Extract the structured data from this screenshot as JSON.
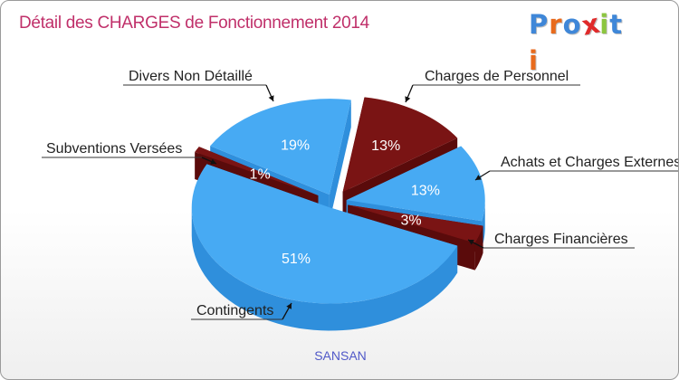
{
  "colors": {
    "title": "#c0306a",
    "subtitle": "#5058c8",
    "blue_top": "#47aaf3",
    "blue_side": "#2f8fdc",
    "red_top": "#7a1414",
    "red_side": "#5a0b0b",
    "logo_letters": [
      "#3b6fc4",
      "#e07a1f",
      "#3b6fc4",
      "#8bc53f",
      "#3b6fc4",
      "#e24a8b"
    ]
  },
  "logo": {
    "letters": [
      "P",
      "r",
      "o",
      "x",
      "i",
      "t",
      "i"
    ],
    "letter_colors": [
      "#3f87d8",
      "#e86a1c",
      "#3f87d8",
      "#e02a2a",
      "#8cc63f",
      "#3f87d8",
      "#e86a1c"
    ]
  },
  "chart_data": {
    "type": "pie",
    "title": "Détail des CHARGES de Fonctionnement 2014",
    "subtitle": "SANSAN",
    "slices": [
      {
        "name": "Charges de Personnel",
        "percent": 13,
        "label": "13%",
        "color": "red"
      },
      {
        "name": "Achats et Charges Externes",
        "percent": 13,
        "label": "13%",
        "color": "blue"
      },
      {
        "name": "Charges Financières",
        "percent": 3,
        "label": "3%",
        "color": "red"
      },
      {
        "name": "Contingents",
        "percent": 51,
        "label": "51%",
        "color": "blue"
      },
      {
        "name": "Subventions Versées",
        "percent": 1,
        "label": "1%",
        "color": "red"
      },
      {
        "name": "Divers Non Détaillé",
        "percent": 19,
        "label": "19%",
        "color": "blue"
      }
    ],
    "callout_labels": {
      "personnel": "Charges de Personnel",
      "achats": "Achats et Charges Externes",
      "financieres": "Charges Financières",
      "contingents": "Contingents",
      "subventions": "Subventions Versées",
      "divers": "Divers Non Détaillé"
    }
  }
}
